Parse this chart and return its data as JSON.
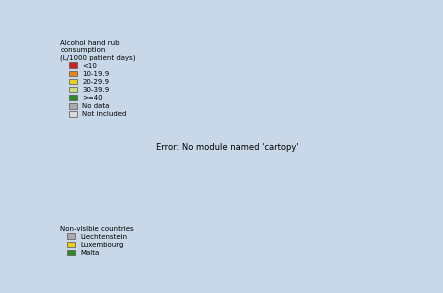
{
  "title": "Alcohol hand rub\nconsumption\n(L/1000 patient days)",
  "legend_categories": [
    {
      "label": "<10",
      "color": "#cc2222"
    },
    {
      "label": "10-19.9",
      "color": "#e8821e"
    },
    {
      "label": "20-29.9",
      "color": "#e8d020"
    },
    {
      "label": "30-39.9",
      "color": "#c8dc80"
    },
    {
      "label": ">=40",
      "color": "#2e8b22"
    },
    {
      "label": "No data",
      "color": "#aaaaaa"
    },
    {
      "label": "Not included",
      "color": "#d8d8d8"
    }
  ],
  "non_visible_note": "Non-visible countries",
  "non_visible": [
    {
      "label": "Liechtenstein",
      "color": "#aaaaaa"
    },
    {
      "label": "Luxembourg",
      "color": "#e8d020"
    },
    {
      "label": "Malta",
      "color": "#2e8b22"
    }
  ],
  "country_colors": {
    "Iceland": "#c8dc80",
    "Norway": "#2e8b22",
    "Sweden": "#2e8b22",
    "Finland": "#e8d020",
    "Estonia": "#e8821e",
    "Latvia": "#cc2222",
    "Lithuania": "#e8d020",
    "Denmark": "#e8821e",
    "United Kingdom": "#e8821e",
    "Ireland": "#e8821e",
    "Netherlands": "#e8821e",
    "Belgium": "#e8821e",
    "France": "#e8d020",
    "Germany": "#e8821e",
    "Poland": "#e8821e",
    "Czech Republic": "#e8821e",
    "Czechia": "#e8821e",
    "Slovakia": "#e8821e",
    "Austria": "#e8821e",
    "Switzerland": "#e8d020",
    "Hungary": "#cc2222",
    "Slovenia": "#cc2222",
    "Croatia": "#cc2222",
    "Bosnia and Herzegovina": "#cc2222",
    "Bosnia and Herz.": "#cc2222",
    "Serbia": "#cc2222",
    "Montenegro": "#cc2222",
    "North Macedonia": "#cc2222",
    "Macedonia": "#cc2222",
    "Albania": "#cc2222",
    "Romania": "#cc2222",
    "Bulgaria": "#cc2222",
    "Greece": "#2e8b22",
    "Italy": "#cc2222",
    "Spain": "#e8821e",
    "Portugal": "#e8821e",
    "Luxembourg": "#e8d020",
    "Malta": "#2e8b22",
    "Liechtenstein": "#aaaaaa",
    "Cyprus": "#cc2222",
    "Kosovo": "#cc2222"
  },
  "not_included_color": "#d8d8d8",
  "ocean_color": "#c8d8e8",
  "border_color": "#666666",
  "border_width": 0.3,
  "figsize": [
    4.43,
    2.93
  ],
  "dpi": 100,
  "xlim": [
    -25,
    45
  ],
  "ylim": [
    34,
    72
  ]
}
